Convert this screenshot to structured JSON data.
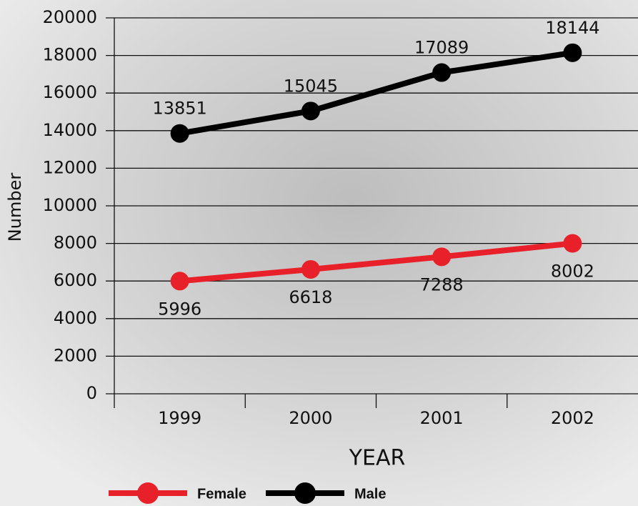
{
  "chart_data": {
    "type": "line",
    "categories": [
      "1999",
      "2000",
      "2001",
      "2002"
    ],
    "series": [
      {
        "name": "Female",
        "color": "#e8202a",
        "values": [
          5996,
          6618,
          7288,
          8002
        ]
      },
      {
        "name": "Male",
        "color": "#000000",
        "values": [
          13851,
          15045,
          17089,
          18144
        ]
      }
    ],
    "ylim": [
      0,
      20000
    ],
    "yticks": [
      0,
      2000,
      4000,
      6000,
      8000,
      10000,
      12000,
      14000,
      16000,
      18000,
      20000
    ],
    "y_label": "Number",
    "x_label": "YEAR",
    "grid": true
  }
}
